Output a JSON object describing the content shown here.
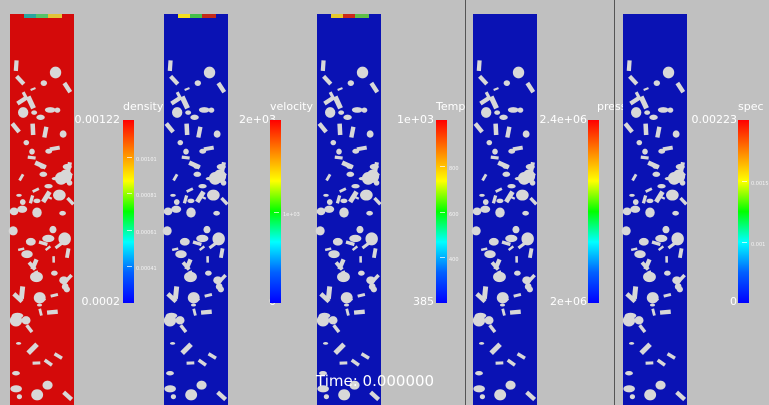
{
  "panels": [
    {
      "title": "density",
      "max_label": "0.00122",
      "min_label": "0.0002",
      "mid_labels": [
        "0.00101",
        "0.00081",
        "0.00061",
        "0.00041"
      ],
      "field_color": "#d40a0a",
      "top_band": [
        "#2aa6a0",
        "#56c46a",
        "#e2c438"
      ]
    },
    {
      "title": "velocity",
      "max_label": "2e+03",
      "min_label": "0",
      "mid_labels": [
        "1e+03"
      ],
      "field_color": "#0a12b4",
      "top_band": [
        "#f4e020",
        "#45c04a",
        "#c42a1a"
      ]
    },
    {
      "title": "Temp",
      "max_label": "1e+03",
      "min_label": "385",
      "mid_labels": [
        "800",
        "600",
        "400"
      ],
      "field_color": "#0a12b4",
      "top_band": [
        "#e4c82c",
        "#cc2a1a",
        "#5fbf48"
      ]
    },
    {
      "title": "press",
      "max_label": "2.4e+06",
      "min_label": "2e+06",
      "mid_labels": [],
      "field_color": "#0a12b4",
      "top_band": []
    },
    {
      "title": "spec",
      "max_label": "0.00223",
      "min_label": "0",
      "mid_labels": [
        "0.0015",
        "0.001"
      ],
      "field_color": "#0a12b4",
      "top_band": []
    }
  ],
  "time_label": "Time: 0.000000",
  "colors": {
    "background": "#c0c0c0",
    "colormap": [
      "#ff0000",
      "#ff8000",
      "#ffff00",
      "#00ff00",
      "#00ffff",
      "#0060ff",
      "#0000ff"
    ]
  }
}
